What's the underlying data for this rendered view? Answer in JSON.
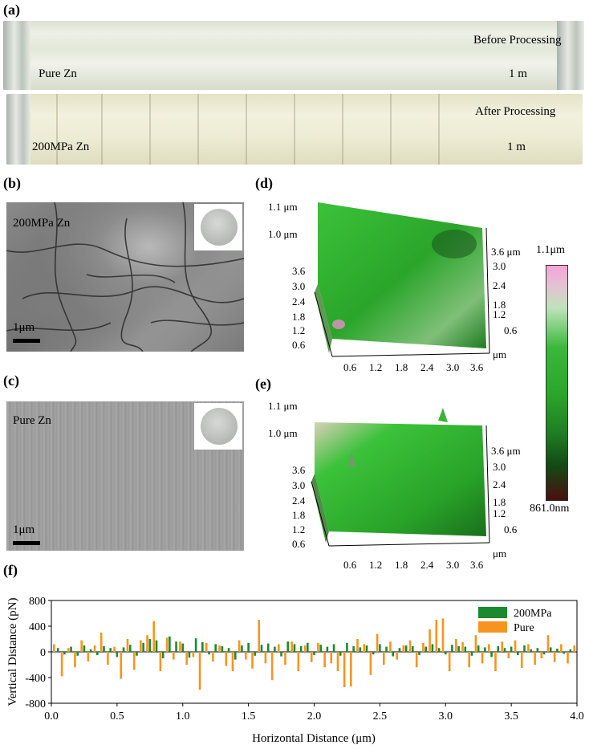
{
  "panels": {
    "a": {
      "letter": "(a)",
      "top_strip": {
        "sample": "Pure Zn",
        "state": "Before Processing",
        "length": "1 m"
      },
      "bottom_strip": {
        "sample": "200MPa Zn",
        "state": "After Processing",
        "length": "1 m"
      }
    },
    "b": {
      "letter": "(b)",
      "sample": "200MPa Zn",
      "scale": "1μm"
    },
    "c": {
      "letter": "(c)",
      "sample": "Pure Zn",
      "scale": "1μm"
    },
    "d": {
      "letter": "(d)",
      "z_ticks": [
        "1.1 μm",
        "1.0 μm"
      ],
      "y_ticks": [
        "3.6",
        "3.0",
        "2.4",
        "1.8",
        "1.2",
        "0.6"
      ],
      "right_ticks": [
        "3.6 μm",
        "3.0",
        "2.4",
        "1.8",
        "1.2",
        "0.6"
      ],
      "x_ticks": [
        "0.6",
        "1.2",
        "1.8",
        "2.4",
        "3.0",
        "3.6"
      ],
      "x_unit": "μm"
    },
    "e": {
      "letter": "(e)",
      "z_ticks": [
        "1.1 μm",
        "1.0 μm"
      ],
      "y_ticks": [
        "3.6",
        "3.0",
        "2.4",
        "1.8",
        "1.2",
        "0.6"
      ],
      "right_ticks": [
        "3.6 μm",
        "3.0",
        "2.4",
        "1.8",
        "1.2",
        "0.6"
      ],
      "x_ticks": [
        "0.6",
        "1.2",
        "1.8",
        "2.4",
        "3.0",
        "3.6"
      ],
      "x_unit": "μm"
    },
    "colorbar": {
      "max": "1.1μm",
      "min": "861.0nm"
    },
    "f": {
      "letter": "(f)"
    }
  },
  "colors": {
    "green_series": "#1b8a2e",
    "orange_series": "#f7941d",
    "afm_green": "#2fae2a"
  },
  "chart_data": {
    "type": "bar",
    "xlabel": "Horizontal Distance (μm)",
    "ylabel": "Vertical Distance (pN)",
    "xlim": [
      0.0,
      4.0
    ],
    "ylim": [
      -800,
      800
    ],
    "x_ticks": [
      "0.0",
      "0.5",
      "1.0",
      "1.5",
      "2.0",
      "2.5",
      "3.0",
      "3.5",
      "4.0"
    ],
    "y_ticks": [
      "800",
      "400",
      "0",
      "-400",
      "-800"
    ],
    "legend_position": "top-right",
    "series": [
      {
        "name": "200MPa",
        "x": [
          0.05,
          0.1,
          0.15,
          0.2,
          0.25,
          0.3,
          0.35,
          0.4,
          0.45,
          0.5,
          0.55,
          0.6,
          0.65,
          0.7,
          0.75,
          0.8,
          0.85,
          0.9,
          0.95,
          1.0,
          1.05,
          1.1,
          1.15,
          1.2,
          1.25,
          1.3,
          1.35,
          1.4,
          1.45,
          1.5,
          1.55,
          1.6,
          1.65,
          1.7,
          1.75,
          1.8,
          1.85,
          1.9,
          1.95,
          2.0,
          2.05,
          2.1,
          2.15,
          2.2,
          2.25,
          2.3,
          2.35,
          2.4,
          2.45,
          2.5,
          2.55,
          2.6,
          2.65,
          2.7,
          2.75,
          2.8,
          2.85,
          2.9,
          2.95,
          3.0,
          3.05,
          3.1,
          3.15,
          3.2,
          3.25,
          3.3,
          3.35,
          3.4,
          3.45,
          3.5,
          3.55,
          3.6,
          3.65,
          3.7,
          3.75,
          3.8,
          3.85,
          3.9,
          3.95
        ],
        "values": [
          60,
          -40,
          80,
          -60,
          100,
          40,
          -50,
          90,
          60,
          -80,
          70,
          110,
          -60,
          140,
          200,
          180,
          -100,
          240,
          160,
          130,
          -90,
          210,
          150,
          -40,
          120,
          90,
          60,
          -120,
          100,
          140,
          -60,
          110,
          130,
          80,
          -70,
          160,
          120,
          90,
          140,
          -50,
          110,
          80,
          120,
          -60,
          140,
          90,
          70,
          100,
          -40,
          120,
          80,
          -70,
          60,
          100,
          90,
          -50,
          80,
          120,
          60,
          -40,
          110,
          90,
          80,
          -60,
          100,
          70,
          -80,
          90,
          60,
          80,
          -50,
          100,
          40,
          60,
          -40,
          70,
          50,
          -30,
          40
        ]
      },
      {
        "name": "Pure",
        "x": [
          0.02,
          0.08,
          0.13,
          0.18,
          0.23,
          0.28,
          0.33,
          0.38,
          0.43,
          0.48,
          0.53,
          0.58,
          0.63,
          0.68,
          0.73,
          0.78,
          0.83,
          0.88,
          0.93,
          0.98,
          1.03,
          1.08,
          1.13,
          1.18,
          1.23,
          1.28,
          1.33,
          1.38,
          1.43,
          1.48,
          1.53,
          1.58,
          1.63,
          1.68,
          1.73,
          1.78,
          1.83,
          1.88,
          1.93,
          1.98,
          2.03,
          2.08,
          2.13,
          2.18,
          2.23,
          2.28,
          2.33,
          2.38,
          2.43,
          2.48,
          2.53,
          2.58,
          2.63,
          2.68,
          2.73,
          2.78,
          2.83,
          2.88,
          2.93,
          2.98,
          3.03,
          3.08,
          3.13,
          3.18,
          3.23,
          3.28,
          3.33,
          3.38,
          3.43,
          3.48,
          3.53,
          3.58,
          3.63,
          3.68,
          3.73,
          3.78,
          3.83,
          3.88,
          3.93,
          3.98
        ],
        "values": [
          120,
          -380,
          60,
          -240,
          180,
          -150,
          100,
          300,
          -200,
          80,
          -420,
          200,
          -280,
          180,
          260,
          480,
          -300,
          220,
          -120,
          160,
          -200,
          -80,
          -590,
          140,
          -150,
          100,
          -220,
          -300,
          180,
          -120,
          -260,
          500,
          -180,
          -440,
          120,
          -200,
          160,
          -300,
          100,
          -160,
          140,
          -240,
          -180,
          -300,
          -550,
          -540,
          200,
          120,
          -360,
          280,
          -200,
          160,
          -120,
          100,
          180,
          -240,
          140,
          350,
          500,
          520,
          -300,
          200,
          150,
          -240,
          260,
          -180,
          120,
          -300,
          160,
          -100,
          180,
          -250,
          120,
          -200,
          -100,
          260,
          -160,
          120,
          -180,
          100
        ]
      }
    ]
  }
}
